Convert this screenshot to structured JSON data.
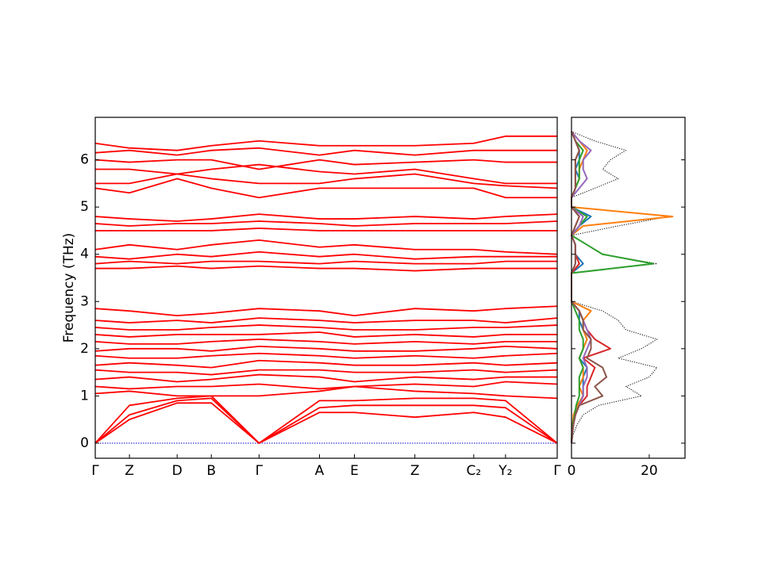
{
  "chart_data": [
    {
      "type": "line",
      "ylabel": "Frequency (THz)",
      "x": [
        0,
        0.43,
        1.03,
        1.46,
        2.06,
        2.82,
        3.26,
        4.02,
        4.76,
        5.16,
        5.81
      ],
      "xlim": [
        0,
        5.81
      ],
      "xticks": [
        {
          "value": 0,
          "label": "Γ"
        },
        {
          "value": 0.43,
          "label": "Z"
        },
        {
          "value": 1.03,
          "label": "D"
        },
        {
          "value": 1.46,
          "label": "B"
        },
        {
          "value": 2.06,
          "label": "Γ"
        },
        {
          "value": 2.82,
          "label": "A"
        },
        {
          "value": 3.26,
          "label": "E"
        },
        {
          "value": 4.02,
          "label": "Z"
        },
        {
          "value": 4.76,
          "label": "C₂"
        },
        {
          "value": 5.16,
          "label": "Y₂"
        },
        {
          "value": 5.81,
          "label": "Γ"
        }
      ],
      "ylim": [
        -0.32,
        6.9
      ],
      "yticks": [
        0,
        1,
        2,
        3,
        4,
        5,
        6
      ],
      "reference_line": {
        "value": 0,
        "color": "#0000cc"
      },
      "series": [
        {
          "color": "#ff0000",
          "values": [
            0,
            0.5,
            0.85,
            0.85,
            0,
            0.65,
            0.65,
            0.55,
            0.65,
            0.55,
            0
          ]
        },
        {
          "color": "#ff0000",
          "values": [
            0,
            0.6,
            0.9,
            0.95,
            0,
            0.75,
            0.8,
            0.8,
            0.8,
            0.75,
            0
          ]
        },
        {
          "color": "#ff0000",
          "values": [
            0,
            0.8,
            0.95,
            1.0,
            0,
            0.9,
            0.9,
            0.95,
            0.95,
            0.9,
            0
          ]
        },
        {
          "color": "#ff0000",
          "values": [
            1.05,
            1.1,
            1.0,
            1.0,
            1.0,
            1.1,
            1.2,
            1.1,
            1.05,
            1.0,
            0.95
          ]
        },
        {
          "color": "#ff0000",
          "values": [
            1.2,
            1.15,
            1.2,
            1.2,
            1.25,
            1.15,
            1.2,
            1.25,
            1.2,
            1.3,
            1.25
          ]
        },
        {
          "color": "#ff0000",
          "values": [
            1.35,
            1.4,
            1.3,
            1.35,
            1.45,
            1.4,
            1.3,
            1.4,
            1.35,
            1.4,
            1.4
          ]
        },
        {
          "color": "#ff0000",
          "values": [
            1.55,
            1.5,
            1.5,
            1.45,
            1.55,
            1.55,
            1.5,
            1.5,
            1.55,
            1.5,
            1.55
          ]
        },
        {
          "color": "#ff0000",
          "values": [
            1.65,
            1.7,
            1.65,
            1.6,
            1.75,
            1.7,
            1.65,
            1.65,
            1.7,
            1.65,
            1.7
          ]
        },
        {
          "color": "#ff0000",
          "values": [
            1.85,
            1.8,
            1.8,
            1.85,
            1.9,
            1.85,
            1.8,
            1.85,
            1.8,
            1.85,
            1.9
          ]
        },
        {
          "color": "#ff0000",
          "values": [
            1.95,
            2.0,
            2.0,
            1.95,
            2.05,
            2.0,
            1.95,
            1.95,
            2.0,
            2.05,
            2.0
          ]
        },
        {
          "color": "#ff0000",
          "values": [
            2.15,
            2.1,
            2.1,
            2.15,
            2.2,
            2.15,
            2.1,
            2.15,
            2.1,
            2.15,
            2.15
          ]
        },
        {
          "color": "#ff0000",
          "values": [
            2.3,
            2.25,
            2.3,
            2.3,
            2.3,
            2.35,
            2.25,
            2.3,
            2.25,
            2.3,
            2.3
          ]
        },
        {
          "color": "#ff0000",
          "values": [
            2.45,
            2.4,
            2.4,
            2.45,
            2.5,
            2.45,
            2.4,
            2.4,
            2.45,
            2.45,
            2.5
          ]
        },
        {
          "color": "#ff0000",
          "values": [
            2.6,
            2.55,
            2.6,
            2.55,
            2.65,
            2.6,
            2.55,
            2.6,
            2.6,
            2.55,
            2.65
          ]
        },
        {
          "color": "#ff0000",
          "values": [
            2.85,
            2.8,
            2.7,
            2.75,
            2.85,
            2.8,
            2.7,
            2.85,
            2.8,
            2.85,
            2.9
          ]
        },
        {
          "color": "#ff0000",
          "values": [
            3.7,
            3.7,
            3.75,
            3.7,
            3.75,
            3.7,
            3.7,
            3.65,
            3.7,
            3.7,
            3.7
          ]
        },
        {
          "color": "#ff0000",
          "values": [
            3.8,
            3.85,
            3.8,
            3.85,
            3.85,
            3.8,
            3.85,
            3.8,
            3.8,
            3.85,
            3.85
          ]
        },
        {
          "color": "#ff0000",
          "values": [
            3.95,
            3.9,
            4.0,
            3.95,
            4.05,
            3.95,
            4.0,
            3.9,
            3.95,
            3.95,
            3.95
          ]
        },
        {
          "color": "#ff0000",
          "values": [
            4.1,
            4.2,
            4.1,
            4.2,
            4.3,
            4.15,
            4.2,
            4.1,
            4.1,
            4.05,
            4.0
          ]
        },
        {
          "color": "#ff0000",
          "values": [
            4.5,
            4.5,
            4.5,
            4.5,
            4.55,
            4.5,
            4.5,
            4.5,
            4.5,
            4.5,
            4.5
          ]
        },
        {
          "color": "#ff0000",
          "values": [
            4.65,
            4.6,
            4.65,
            4.65,
            4.7,
            4.65,
            4.6,
            4.65,
            4.65,
            4.65,
            4.7
          ]
        },
        {
          "color": "#ff0000",
          "values": [
            4.8,
            4.75,
            4.7,
            4.75,
            4.85,
            4.75,
            4.75,
            4.8,
            4.75,
            4.8,
            4.85
          ]
        },
        {
          "color": "#ff0000",
          "values": [
            5.4,
            5.3,
            5.6,
            5.4,
            5.2,
            5.4,
            5.4,
            5.4,
            5.4,
            5.2,
            5.2
          ]
        },
        {
          "color": "#ff0000",
          "values": [
            5.5,
            5.5,
            5.7,
            5.6,
            5.5,
            5.5,
            5.6,
            5.7,
            5.5,
            5.45,
            5.4
          ]
        },
        {
          "color": "#ff0000",
          "values": [
            5.8,
            5.8,
            5.7,
            5.8,
            5.9,
            5.75,
            5.7,
            5.8,
            5.6,
            5.5,
            5.5
          ]
        },
        {
          "color": "#ff0000",
          "values": [
            6.0,
            5.95,
            6.0,
            6.0,
            5.8,
            6.0,
            5.9,
            5.95,
            6.0,
            5.95,
            5.95
          ]
        },
        {
          "color": "#ff0000",
          "values": [
            6.15,
            6.2,
            6.1,
            6.2,
            6.25,
            6.1,
            6.2,
            6.1,
            6.2,
            6.2,
            6.2
          ]
        },
        {
          "color": "#ff0000",
          "values": [
            6.35,
            6.25,
            6.2,
            6.3,
            6.4,
            6.3,
            6.3,
            6.3,
            6.35,
            6.5,
            6.5
          ]
        }
      ]
    },
    {
      "type": "line",
      "orientation": "horizontal",
      "y": [
        0,
        0.2,
        0.4,
        0.6,
        0.8,
        1.0,
        1.2,
        1.4,
        1.6,
        1.8,
        2.0,
        2.2,
        2.4,
        2.6,
        2.8,
        3.0,
        3.2,
        3.4,
        3.6,
        3.8,
        4.0,
        4.2,
        4.4,
        4.6,
        4.8,
        5.0,
        5.2,
        5.4,
        5.6,
        5.8,
        6.0,
        6.2,
        6.4,
        6.6
      ],
      "xlim": [
        0,
        29.2
      ],
      "xticks": [
        0,
        20
      ],
      "ylim": [
        -0.32,
        6.9
      ],
      "yticks": [
        0,
        1,
        2,
        3,
        4,
        5,
        6
      ],
      "series": [
        {
          "color": "#000000",
          "dash": "dotted",
          "values": [
            0,
            0.5,
            1.5,
            3,
            7,
            18,
            14,
            20,
            22,
            12,
            18,
            22,
            14,
            12,
            8,
            0,
            0,
            0,
            0,
            22,
            8,
            4,
            0,
            12,
            25,
            0,
            0,
            6,
            12,
            8,
            10,
            14,
            6,
            0
          ]
        },
        {
          "color": "#1f77b4",
          "values": [
            0,
            0.2,
            0.5,
            1,
            1.5,
            3,
            3,
            3,
            4,
            2,
            3,
            4,
            3,
            2,
            2,
            0,
            0,
            0,
            0,
            3,
            1,
            1,
            0,
            2,
            5,
            0,
            0,
            1,
            2,
            1,
            2,
            2,
            1,
            0
          ]
        },
        {
          "color": "#ff7f0e",
          "values": [
            0,
            0.1,
            0.3,
            0.5,
            1.5,
            3,
            2,
            3,
            3,
            2,
            3,
            4,
            3,
            3,
            5,
            0,
            0,
            0,
            0,
            2,
            1,
            1,
            0,
            3,
            26,
            0,
            0,
            1,
            2,
            2,
            3,
            4,
            2,
            0
          ]
        },
        {
          "color": "#2ca02c",
          "values": [
            0,
            0.1,
            0.3,
            0.8,
            1.2,
            2,
            2,
            2,
            3,
            2,
            3,
            3,
            2,
            2,
            1,
            0,
            0,
            0,
            0,
            21,
            8,
            4,
            0,
            2,
            4,
            0,
            0,
            1,
            2,
            2,
            2,
            3,
            1,
            0
          ]
        },
        {
          "color": "#d62728",
          "values": [
            0,
            0.2,
            0.5,
            1,
            2,
            4,
            4,
            5,
            6,
            3,
            10,
            6,
            4,
            3,
            2,
            0,
            0,
            0,
            0,
            2,
            1,
            1,
            0,
            1,
            2,
            0,
            0,
            1,
            1,
            1,
            1,
            2,
            1,
            0
          ]
        },
        {
          "color": "#9467bd",
          "values": [
            0,
            0.2,
            0.5,
            1,
            2,
            3,
            3,
            4,
            4,
            3,
            4,
            5,
            4,
            3,
            2,
            0,
            0,
            0,
            0,
            1,
            1,
            1,
            0,
            2,
            3,
            0,
            0,
            2,
            4,
            3,
            3,
            5,
            2,
            0
          ]
        },
        {
          "color": "#8c564b",
          "values": [
            0,
            0.2,
            0.5,
            1,
            2,
            8,
            6,
            9,
            8,
            4,
            5,
            5,
            3,
            3,
            2,
            0,
            0,
            0,
            0,
            1,
            1,
            1,
            0,
            1,
            2,
            0,
            0,
            1,
            1,
            1,
            1,
            2,
            1,
            0
          ]
        }
      ]
    }
  ]
}
